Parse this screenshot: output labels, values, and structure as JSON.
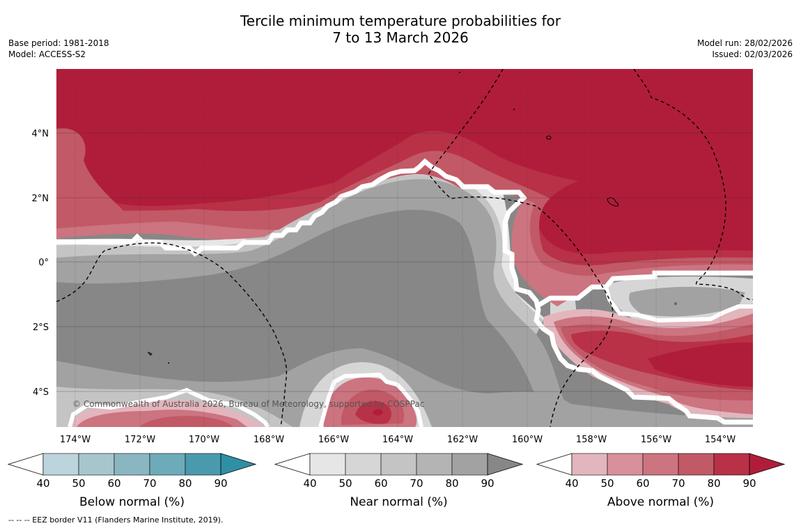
{
  "title_line1": "Tercile minimum temperature probabilities for",
  "title_line2": "7 to 13 March 2026",
  "base_period": "Base period: 1981-2018",
  "model": "Model: ACCESS-S2",
  "model_run": "Model run: 28/02/2026",
  "issued": "Issued: 02/03/2026",
  "copyright": "© Commonwealth of Australia 2026, Bureau of Meteorology, supported by COSPPac",
  "footer": "--  --  -- EEZ border V11 (Flanders Marine Institute, 2019).",
  "map": {
    "lon_labels": [
      "174°W",
      "172°W",
      "170°W",
      "168°W",
      "166°W",
      "164°W",
      "162°W",
      "160°W",
      "158°W",
      "156°W",
      "154°W"
    ],
    "lat_labels": [
      "4°N",
      "2°N",
      "0°",
      "2°S",
      "4°S"
    ],
    "lon_range": [
      "174.6°W",
      "153.0°W"
    ],
    "lat_range": [
      "5.1°S",
      "5.9°N"
    ]
  },
  "colorbars": [
    {
      "label": "Below normal (%)",
      "ticks": [
        "40",
        "50",
        "60",
        "70",
        "80",
        "90"
      ],
      "colors": [
        "#ffffff",
        "#bcd4db",
        "#a6c6cc",
        "#8ab6c2",
        "#6eabba",
        "#4a9aad",
        "#2f8fa3"
      ]
    },
    {
      "label": "Near normal (%)",
      "ticks": [
        "40",
        "50",
        "60",
        "70",
        "80",
        "90"
      ],
      "colors": [
        "#ffffff",
        "#e6e6e6",
        "#d6d6d6",
        "#c4c4c4",
        "#b4b4b4",
        "#a2a2a2",
        "#878787"
      ]
    },
    {
      "label": "Above normal (%)",
      "ticks": [
        "40",
        "50",
        "60",
        "70",
        "80",
        "90"
      ],
      "colors": [
        "#ffffff",
        "#e3b5bc",
        "#d8919c",
        "#cc7480",
        "#c25966",
        "#b83147",
        "#b01d3a"
      ]
    }
  ]
}
